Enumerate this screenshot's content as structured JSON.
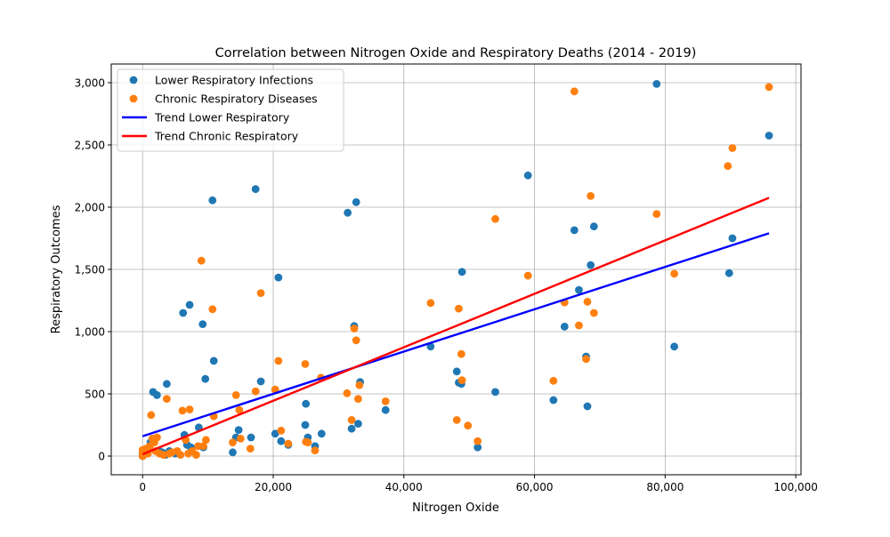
{
  "chart_data": {
    "type": "scatter",
    "title": "Correlation between Nitrogen Oxide and Respiratory Deaths (2014 - 2019)",
    "xlabel": "Nitrogen Oxide",
    "ylabel": "Respiratory Outcomes",
    "xlim": [
      -4800,
      100800
    ],
    "ylim": [
      -150,
      3150
    ],
    "xticks": [
      0,
      20000,
      40000,
      60000,
      80000,
      100000
    ],
    "xtick_labels": [
      "0",
      "20,000",
      "40,000",
      "60,000",
      "80,000",
      "100,000"
    ],
    "yticks": [
      0,
      500,
      1000,
      1500,
      2000,
      2500,
      3000
    ],
    "ytick_labels": [
      "0",
      "500",
      "1,000",
      "1,500",
      "2,000",
      "2,500",
      "3,000"
    ],
    "grid": true,
    "legend_position": "top-left",
    "series": [
      {
        "name": "Lower Respiratory Infections",
        "kind": "scatter",
        "color": "#1f77b4",
        "points": [
          [
            0,
            0
          ],
          [
            0,
            20
          ],
          [
            100,
            10
          ],
          [
            300,
            30
          ],
          [
            600,
            20
          ],
          [
            900,
            60
          ],
          [
            1200,
            110
          ],
          [
            1500,
            140
          ],
          [
            1600,
            515
          ],
          [
            2200,
            490
          ],
          [
            2500,
            40
          ],
          [
            3000,
            30
          ],
          [
            3500,
            10
          ],
          [
            3700,
            580
          ],
          [
            4100,
            40
          ],
          [
            5000,
            20
          ],
          [
            6200,
            1150
          ],
          [
            6400,
            170
          ],
          [
            6800,
            90
          ],
          [
            7200,
            1215
          ],
          [
            7400,
            70
          ],
          [
            8600,
            230
          ],
          [
            9200,
            1060
          ],
          [
            9300,
            70
          ],
          [
            9600,
            620
          ],
          [
            10700,
            2055
          ],
          [
            10900,
            765
          ],
          [
            13800,
            30
          ],
          [
            14300,
            150
          ],
          [
            14700,
            210
          ],
          [
            16600,
            150
          ],
          [
            17300,
            2145
          ],
          [
            18100,
            600
          ],
          [
            20300,
            180
          ],
          [
            20800,
            1435
          ],
          [
            21200,
            120
          ],
          [
            22300,
            90
          ],
          [
            24900,
            250
          ],
          [
            25000,
            420
          ],
          [
            25300,
            150
          ],
          [
            26400,
            80
          ],
          [
            27400,
            180
          ],
          [
            31400,
            1955
          ],
          [
            32000,
            220
          ],
          [
            32400,
            1045
          ],
          [
            32700,
            2040
          ],
          [
            33000,
            260
          ],
          [
            33300,
            595
          ],
          [
            37200,
            370
          ],
          [
            44100,
            880
          ],
          [
            48100,
            680
          ],
          [
            48400,
            590
          ],
          [
            48800,
            580
          ],
          [
            48900,
            1480
          ],
          [
            51300,
            70
          ],
          [
            54000,
            515
          ],
          [
            59000,
            2255
          ],
          [
            62900,
            450
          ],
          [
            64600,
            1040
          ],
          [
            66100,
            1815
          ],
          [
            66800,
            1335
          ],
          [
            67900,
            800
          ],
          [
            68100,
            400
          ],
          [
            68600,
            1535
          ],
          [
            69100,
            1845
          ],
          [
            78700,
            2990
          ],
          [
            81400,
            880
          ],
          [
            89800,
            1470
          ],
          [
            90300,
            1750
          ],
          [
            95900,
            2575
          ]
        ]
      },
      {
        "name": "Chronic Respiratory Diseases",
        "kind": "scatter",
        "color": "#ff7f0e",
        "points": [
          [
            0,
            0
          ],
          [
            0,
            30
          ],
          [
            0,
            50
          ],
          [
            100,
            10
          ],
          [
            300,
            40
          ],
          [
            500,
            60
          ],
          [
            800,
            20
          ],
          [
            1100,
            80
          ],
          [
            1300,
            330
          ],
          [
            1500,
            140
          ],
          [
            1800,
            110
          ],
          [
            2000,
            40
          ],
          [
            2200,
            150
          ],
          [
            2600,
            20
          ],
          [
            3200,
            10
          ],
          [
            3700,
            460
          ],
          [
            4100,
            20
          ],
          [
            4500,
            30
          ],
          [
            5300,
            40
          ],
          [
            5800,
            10
          ],
          [
            6100,
            365
          ],
          [
            6600,
            130
          ],
          [
            7000,
            20
          ],
          [
            7200,
            375
          ],
          [
            7600,
            40
          ],
          [
            8200,
            10
          ],
          [
            8500,
            80
          ],
          [
            9000,
            1570
          ],
          [
            9300,
            80
          ],
          [
            9700,
            130
          ],
          [
            10700,
            1180
          ],
          [
            10900,
            320
          ],
          [
            13800,
            110
          ],
          [
            14300,
            490
          ],
          [
            14800,
            370
          ],
          [
            15000,
            140
          ],
          [
            16500,
            60
          ],
          [
            17300,
            520
          ],
          [
            18100,
            1310
          ],
          [
            20300,
            535
          ],
          [
            20800,
            765
          ],
          [
            21200,
            205
          ],
          [
            22300,
            100
          ],
          [
            24900,
            740
          ],
          [
            25000,
            115
          ],
          [
            25300,
            110
          ],
          [
            26400,
            45
          ],
          [
            27300,
            630
          ],
          [
            31300,
            505
          ],
          [
            32000,
            290
          ],
          [
            32400,
            1025
          ],
          [
            32700,
            930
          ],
          [
            33000,
            460
          ],
          [
            33200,
            570
          ],
          [
            37200,
            440
          ],
          [
            44100,
            1230
          ],
          [
            48100,
            290
          ],
          [
            48400,
            1185
          ],
          [
            48800,
            820
          ],
          [
            48900,
            610
          ],
          [
            49800,
            245
          ],
          [
            51300,
            120
          ],
          [
            54000,
            1905
          ],
          [
            59000,
            1450
          ],
          [
            62900,
            605
          ],
          [
            64600,
            1235
          ],
          [
            66100,
            2930
          ],
          [
            66800,
            1050
          ],
          [
            67900,
            780
          ],
          [
            68100,
            1240
          ],
          [
            68600,
            2090
          ],
          [
            69100,
            1150
          ],
          [
            78700,
            1945
          ],
          [
            81400,
            1465
          ],
          [
            89600,
            2330
          ],
          [
            90300,
            2475
          ],
          [
            95900,
            2965
          ]
        ]
      },
      {
        "name": "Trend Lower Respiratory",
        "kind": "line",
        "color": "#0000ff",
        "points": [
          [
            0,
            160
          ],
          [
            95900,
            1790
          ]
        ]
      },
      {
        "name": "Trend Chronic Respiratory",
        "kind": "line",
        "color": "#ff0000",
        "points": [
          [
            0,
            15
          ],
          [
            95900,
            2075
          ]
        ]
      }
    ]
  }
}
